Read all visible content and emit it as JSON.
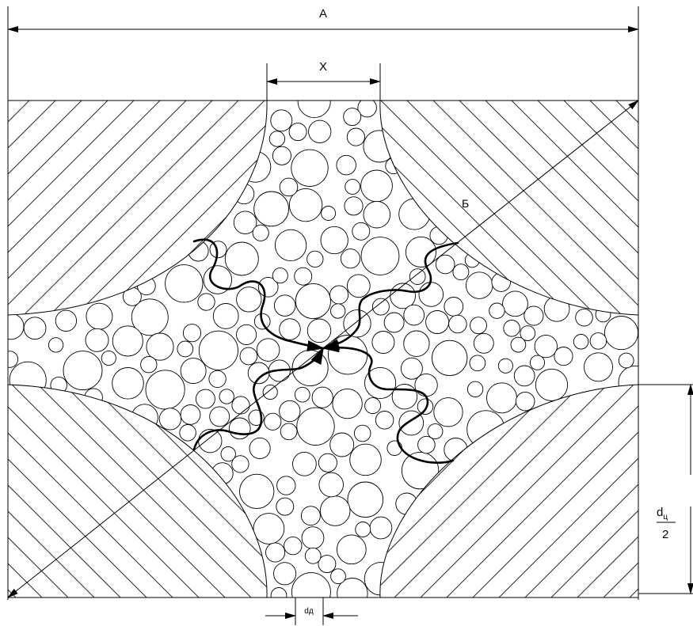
{
  "labels": {
    "a": "A",
    "x": "X",
    "b": "Б",
    "dd": "dд",
    "dc_num": "d",
    "dc_sub": "ц",
    "dc_den": "2"
  },
  "colors": {
    "line": "#000000",
    "background": "#ffffff",
    "hatch": "#2a2a2a"
  }
}
